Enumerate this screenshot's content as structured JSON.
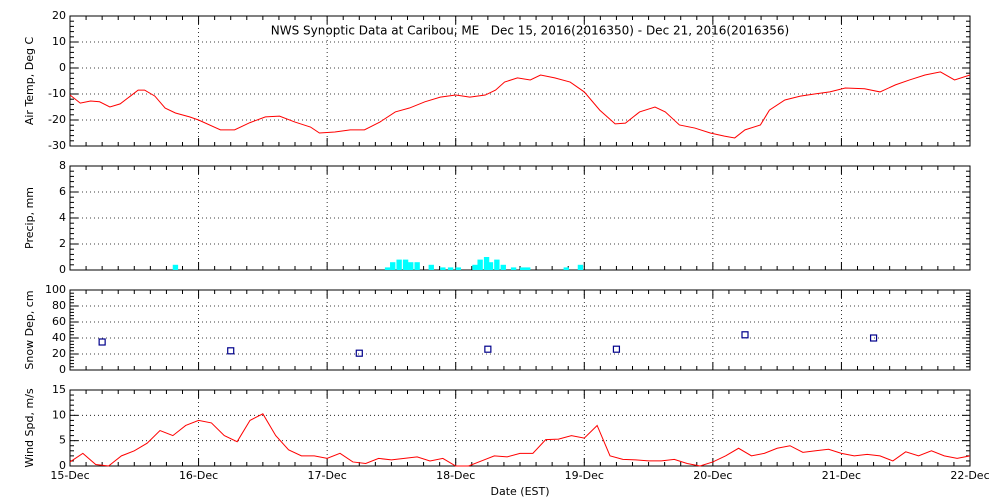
{
  "chart_data": [
    {
      "type": "line",
      "title": "NWS Synoptic Data at Caribou, ME   Dec 15, 2016(2016350) - Dec 21, 2016(2016356)",
      "ylabel": "Air Temp, Deg C",
      "color": "#ff0000",
      "x": [
        0,
        0.08,
        0.16,
        0.23,
        0.31,
        0.39,
        0.47,
        0.53,
        0.58,
        0.66,
        0.74,
        0.82,
        0.93,
        1.0,
        1.17,
        1.28,
        1.4,
        1.52,
        1.63,
        1.75,
        1.87,
        1.94,
        2.06,
        2.18,
        2.29,
        2.41,
        2.53,
        2.64,
        2.76,
        2.88,
        3.0,
        3.11,
        3.23,
        3.31,
        3.38,
        3.48,
        3.58,
        3.66,
        3.77,
        3.89,
        4.0,
        4.12,
        4.24,
        4.32,
        4.43,
        4.55,
        4.63,
        4.74,
        4.86,
        4.98,
        5.09,
        5.17,
        5.25,
        5.37,
        5.44,
        5.56,
        5.68,
        5.79,
        5.91,
        6.03,
        6.18,
        6.3,
        6.42,
        6.53,
        6.65,
        6.77,
        6.88,
        7.0
      ],
      "values": [
        -10.4,
        -13.5,
        -12.7,
        -13,
        -15,
        -13.8,
        -10.8,
        -8.5,
        -8.5,
        -10.8,
        -15.4,
        -17.3,
        -18.8,
        -20,
        -23.8,
        -23.8,
        -21,
        -18.8,
        -18.5,
        -20.8,
        -22.7,
        -25,
        -24.6,
        -23.8,
        -23.8,
        -20.8,
        -16.9,
        -15.4,
        -13,
        -11.2,
        -10.4,
        -11.2,
        -10.4,
        -8.5,
        -5.4,
        -3.8,
        -4.6,
        -2.7,
        -3.8,
        -5.4,
        -9.2,
        -16.2,
        -21.5,
        -21.2,
        -16.9,
        -15,
        -16.9,
        -21.9,
        -23.1,
        -25,
        -26.2,
        -26.9,
        -23.8,
        -21.9,
        -16.2,
        -12.3,
        -10.8,
        -10,
        -9.2,
        -7.7,
        -8,
        -9.2,
        -6.5,
        -4.6,
        -2.7,
        -1.5,
        -4.6,
        -2.7
      ],
      "xlim": [
        0,
        7
      ],
      "xticks": [
        0,
        1,
        2,
        3,
        4,
        5,
        6,
        7
      ],
      "ylim": [
        -30,
        20
      ],
      "yticks": [
        -30,
        -20,
        -10,
        0,
        10,
        20
      ],
      "grid": true
    },
    {
      "type": "bar",
      "ylabel": "Precip, mm",
      "color": "#00ffff",
      "x": [
        0.82,
        2.47,
        2.51,
        2.56,
        2.61,
        2.65,
        2.7,
        2.81,
        2.9,
        2.96,
        3.02,
        3.15,
        3.19,
        3.24,
        3.27,
        3.32,
        3.37,
        3.45,
        3.52,
        3.56,
        3.86,
        3.97
      ],
      "values": [
        0.4,
        0.2,
        0.6,
        0.8,
        0.8,
        0.6,
        0.6,
        0.4,
        0.2,
        0.2,
        0.2,
        0.4,
        0.8,
        1.0,
        0.6,
        0.8,
        0.4,
        0.2,
        0.2,
        0.2,
        0.2,
        0.4
      ],
      "xlim": [
        0,
        7
      ],
      "xticks": [
        0,
        1,
        2,
        3,
        4,
        5,
        6,
        7
      ],
      "ylim": [
        0,
        8
      ],
      "yticks": [
        0,
        2,
        4,
        6,
        8
      ],
      "grid": true
    },
    {
      "type": "scatter",
      "ylabel": "Snow Dep, cm",
      "color": "#00008b",
      "x": [
        0.25,
        1.25,
        2.25,
        3.25,
        4.25,
        5.25,
        6.25
      ],
      "values": [
        35,
        24,
        21,
        26,
        26,
        44,
        40
      ],
      "xlim": [
        0,
        7
      ],
      "xticks": [
        0,
        1,
        2,
        3,
        4,
        5,
        6,
        7
      ],
      "ylim": [
        0,
        100
      ],
      "yticks": [
        0,
        20,
        40,
        60,
        80,
        100
      ],
      "grid": true
    },
    {
      "type": "line",
      "ylabel": "Wind Spd, m/s",
      "xlabel": "Date (EST)",
      "color": "#ff0000",
      "x": [
        0,
        0.1,
        0.2,
        0.3,
        0.4,
        0.5,
        0.6,
        0.7,
        0.8,
        0.9,
        1.0,
        1.1,
        1.2,
        1.3,
        1.4,
        1.5,
        1.6,
        1.7,
        1.8,
        1.9,
        2.0,
        2.1,
        2.2,
        2.3,
        2.4,
        2.5,
        2.6,
        2.7,
        2.8,
        2.9,
        3.0,
        3.1,
        3.2,
        3.3,
        3.4,
        3.5,
        3.6,
        3.7,
        3.8,
        3.9,
        4.0,
        4.1,
        4.2,
        4.3,
        4.4,
        4.5,
        4.6,
        4.7,
        4.8,
        4.9,
        5.0,
        5.1,
        5.2,
        5.3,
        5.4,
        5.5,
        5.6,
        5.7,
        5.8,
        5.9,
        6.0,
        6.1,
        6.2,
        6.3,
        6.4,
        6.5,
        6.6,
        6.7,
        6.8,
        6.9,
        7.0
      ],
      "values": [
        0.8,
        2.5,
        0.3,
        0,
        2,
        3,
        4.5,
        7,
        6,
        8,
        9,
        8.5,
        6,
        4.8,
        9,
        10.3,
        6,
        3.2,
        2,
        2,
        1.5,
        2.5,
        0.8,
        0.5,
        1.5,
        1.2,
        1.5,
        1.8,
        1,
        1.5,
        0,
        0,
        1,
        2,
        1.8,
        2.5,
        2.5,
        5.2,
        5.3,
        6,
        5.5,
        8,
        2,
        1.3,
        1.2,
        1,
        1,
        1.3,
        0.5,
        0,
        0.8,
        2,
        3.5,
        2,
        2.5,
        3.5,
        4,
        2.7,
        3,
        3.3,
        2.5,
        2,
        2.3,
        2,
        1,
        2.8,
        2,
        3,
        2,
        1.5,
        2
      ],
      "xlim": [
        0,
        7
      ],
      "xticks": [
        {
          "value": 0,
          "label": "15-Dec"
        },
        {
          "value": 1,
          "label": "16-Dec"
        },
        {
          "value": 2,
          "label": "17-Dec"
        },
        {
          "value": 3,
          "label": "18-Dec"
        },
        {
          "value": 4,
          "label": "19-Dec"
        },
        {
          "value": 5,
          "label": "20-Dec"
        },
        {
          "value": 6,
          "label": "21-Dec"
        },
        {
          "value": 7,
          "label": "22-Dec"
        }
      ],
      "ylim": [
        0,
        15
      ],
      "yticks": [
        0,
        5,
        10,
        15
      ],
      "grid": true
    }
  ]
}
